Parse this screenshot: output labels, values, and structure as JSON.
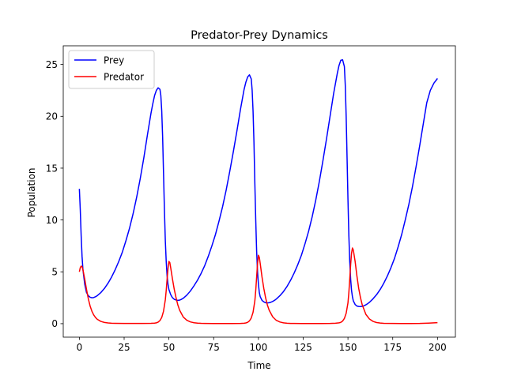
{
  "chart_data": {
    "type": "line",
    "title": "Predator-Prey Dynamics",
    "xlabel": "Time",
    "ylabel": "Population",
    "xlim": [
      -9,
      210
    ],
    "ylim": [
      -1.3,
      26.8
    ],
    "xticks": [
      0,
      25,
      50,
      75,
      100,
      125,
      150,
      175,
      200
    ],
    "yticks": [
      0,
      5,
      10,
      15,
      20,
      25
    ],
    "grid": false,
    "legend": "top-left",
    "series": [
      {
        "name": "Prey",
        "color": "#0000ff",
        "x": [
          0,
          0.5,
          1,
          1.5,
          2,
          3,
          4,
          5,
          6,
          7,
          8,
          9,
          10,
          12,
          14,
          16,
          18,
          20,
          22,
          24,
          26,
          28,
          30,
          32,
          34,
          36,
          38,
          40,
          41,
          42,
          43,
          44,
          45,
          45.5,
          46,
          46.5,
          47,
          47.5,
          48,
          48.5,
          49,
          49.5,
          50,
          51,
          52,
          53,
          54,
          55,
          56,
          57,
          58,
          60,
          62,
          64,
          66,
          68,
          70,
          72,
          74,
          76,
          78,
          80,
          82,
          84,
          86,
          88,
          90,
          92,
          93,
          94,
          95,
          96,
          96.5,
          97,
          97.5,
          98,
          98.5,
          99,
          99.5,
          100,
          100.5,
          101,
          102,
          103,
          104,
          105,
          106,
          107,
          108,
          109,
          110,
          112,
          114,
          116,
          118,
          120,
          122,
          124,
          126,
          128,
          130,
          132,
          134,
          136,
          138,
          140,
          142,
          144,
          145,
          146,
          147,
          148,
          148.5,
          149,
          149.5,
          150,
          150.5,
          151,
          151.5,
          152,
          152.5,
          153,
          154,
          155,
          156,
          157,
          158,
          159,
          160,
          161,
          162,
          164,
          166,
          168,
          170,
          172,
          174,
          176,
          178,
          180,
          182,
          184,
          186,
          188,
          190,
          192,
          194,
          196,
          198,
          200
        ],
        "values": [
          13.0,
          11.0,
          8.5,
          6.5,
          5.2,
          3.8,
          3.0,
          2.7,
          2.55,
          2.5,
          2.52,
          2.6,
          2.7,
          3.0,
          3.4,
          3.9,
          4.5,
          5.2,
          6.0,
          6.9,
          8.0,
          9.2,
          10.6,
          12.2,
          14.0,
          16.0,
          18.2,
          20.3,
          21.2,
          22.0,
          22.5,
          22.75,
          22.6,
          22.0,
          20.5,
          18.0,
          14.5,
          11.0,
          8.0,
          6.0,
          4.6,
          3.8,
          3.3,
          2.8,
          2.5,
          2.35,
          2.28,
          2.25,
          2.27,
          2.35,
          2.45,
          2.75,
          3.15,
          3.65,
          4.2,
          4.85,
          5.6,
          6.5,
          7.5,
          8.6,
          9.9,
          11.3,
          12.9,
          14.7,
          16.6,
          18.6,
          20.7,
          22.6,
          23.3,
          23.8,
          24.0,
          23.6,
          22.5,
          20.5,
          17.5,
          13.5,
          10.0,
          7.0,
          5.0,
          3.8,
          3.0,
          2.6,
          2.25,
          2.1,
          2.02,
          2.0,
          2.02,
          2.07,
          2.15,
          2.25,
          2.38,
          2.7,
          3.1,
          3.6,
          4.2,
          4.9,
          5.7,
          6.6,
          7.7,
          8.9,
          10.3,
          11.9,
          13.7,
          15.7,
          17.8,
          20.0,
          22.2,
          24.1,
          24.9,
          25.4,
          25.45,
          24.8,
          23.0,
          20.0,
          16.0,
          12.0,
          8.5,
          6.0,
          4.3,
          3.2,
          2.6,
          2.2,
          1.85,
          1.7,
          1.66,
          1.65,
          1.67,
          1.73,
          1.82,
          1.93,
          2.06,
          2.4,
          2.8,
          3.3,
          3.9,
          4.6,
          5.4,
          6.3,
          7.4,
          8.6,
          10.0,
          11.5,
          13.2,
          15.1,
          17.1,
          19.2,
          21.3,
          22.5,
          23.2,
          23.65
        ]
      },
      {
        "name": "Predator",
        "color": "#ff0000",
        "x": [
          0,
          0.5,
          1,
          1.5,
          2,
          3,
          4,
          5,
          6,
          7,
          8,
          9,
          10,
          12,
          14,
          16,
          18,
          20,
          25,
          30,
          35,
          40,
          42,
          43,
          44,
          45,
          46,
          47,
          48,
          48.5,
          49,
          49.5,
          50,
          50.5,
          51,
          52,
          53,
          54,
          55,
          56,
          58,
          60,
          62,
          64,
          66,
          68,
          70,
          75,
          80,
          85,
          90,
          92,
          93,
          94,
          95,
          96,
          97,
          98,
          98.5,
          99,
          99.5,
          100,
          100.5,
          101,
          102,
          103,
          104,
          105,
          106,
          108,
          110,
          112,
          114,
          116,
          118,
          120,
          125,
          130,
          135,
          140,
          143,
          145,
          146,
          147,
          148,
          149,
          150,
          150.5,
          151,
          151.5,
          152,
          152.5,
          153,
          154,
          155,
          156,
          157,
          158,
          160,
          162,
          164,
          166,
          168,
          170,
          175,
          180,
          185,
          190,
          195,
          200
        ],
        "values": [
          5.0,
          5.4,
          5.55,
          5.5,
          5.2,
          4.3,
          3.3,
          2.4,
          1.7,
          1.2,
          0.85,
          0.6,
          0.42,
          0.22,
          0.12,
          0.07,
          0.04,
          0.03,
          0.02,
          0.02,
          0.02,
          0.03,
          0.05,
          0.08,
          0.15,
          0.3,
          0.6,
          1.2,
          2.3,
          3.2,
          4.3,
          5.3,
          6.0,
          5.9,
          5.4,
          4.3,
          3.3,
          2.5,
          1.8,
          1.3,
          0.65,
          0.33,
          0.17,
          0.09,
          0.05,
          0.03,
          0.02,
          0.01,
          0.01,
          0.01,
          0.02,
          0.04,
          0.07,
          0.13,
          0.27,
          0.55,
          1.1,
          2.2,
          3.2,
          4.5,
          5.8,
          6.6,
          6.4,
          5.8,
          4.5,
          3.4,
          2.5,
          1.8,
          1.3,
          0.65,
          0.32,
          0.16,
          0.08,
          0.04,
          0.02,
          0.02,
          0.01,
          0.01,
          0.01,
          0.02,
          0.04,
          0.08,
          0.13,
          0.25,
          0.5,
          1.0,
          2.0,
          3.0,
          4.3,
          5.7,
          6.8,
          7.3,
          7.1,
          6.0,
          4.6,
          3.4,
          2.5,
          1.8,
          0.9,
          0.45,
          0.22,
          0.11,
          0.06,
          0.03,
          0.02,
          0.01,
          0.01,
          0.02,
          0.05,
          0.1
        ]
      }
    ]
  }
}
